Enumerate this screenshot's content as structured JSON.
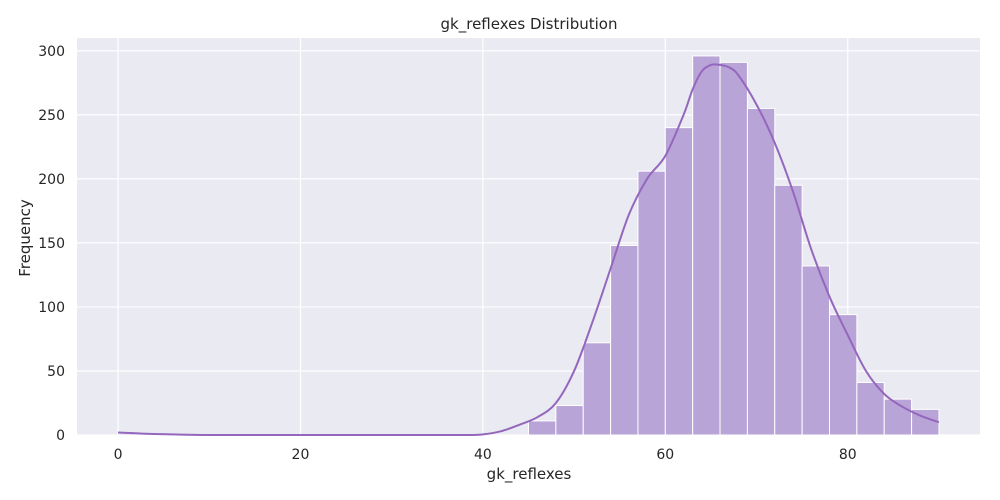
{
  "chart_data": {
    "type": "bar",
    "subtype": "histogram-with-kde",
    "title": "gk_reflexes Distribution",
    "xlabel": "gk_reflexes",
    "ylabel": "Frequency",
    "xlim": [
      -4.5,
      94.5
    ],
    "ylim": [
      0,
      310
    ],
    "xticks": [
      0,
      20,
      40,
      60,
      80
    ],
    "yticks": [
      0,
      50,
      100,
      150,
      200,
      250,
      300
    ],
    "grid": true,
    "bin_edges": [
      0,
      3,
      6,
      9,
      12,
      15,
      18,
      21,
      24,
      27,
      30,
      33,
      36,
      39,
      42,
      45,
      48,
      51,
      54,
      57,
      60,
      63,
      66,
      69,
      72,
      75,
      78,
      81,
      84,
      87,
      90
    ],
    "values": [
      1,
      0,
      0,
      0,
      0,
      0,
      0,
      0,
      0,
      0,
      0,
      0,
      0,
      0,
      0,
      11,
      23,
      72,
      148,
      206,
      240,
      296,
      291,
      255,
      195,
      132,
      94,
      41,
      28,
      20
    ],
    "kde": {
      "x": [
        0,
        3,
        6,
        10,
        20,
        30,
        38,
        40,
        42,
        44,
        46,
        48,
        50,
        52,
        54,
        56,
        58,
        60,
        62,
        63,
        64,
        65,
        66,
        67,
        68,
        70,
        72,
        74,
        76,
        78,
        80,
        82,
        84,
        86,
        88,
        90
      ],
      "y": [
        2,
        1,
        0.5,
        0,
        0,
        0,
        0,
        0.5,
        3,
        8,
        14,
        25,
        50,
        88,
        130,
        172,
        200,
        218,
        250,
        270,
        284,
        289,
        289,
        287,
        281,
        258,
        228,
        190,
        145,
        108,
        78,
        50,
        32,
        22,
        15,
        10
      ]
    },
    "colors": {
      "bar_fill": "#b9a4d7",
      "bar_edge": "#ffffff",
      "kde_line": "#9467bd",
      "plot_bg": "#eaeaf2",
      "grid": "#ffffff"
    }
  }
}
